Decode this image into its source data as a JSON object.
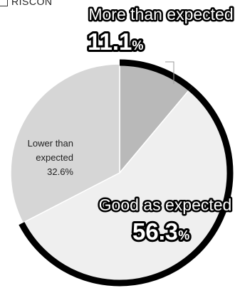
{
  "source_label": "RISCON",
  "chart_data": {
    "type": "pie",
    "slices": [
      {
        "label": "More than expected",
        "value": 11.1,
        "value_text": "11.1",
        "unit": "%",
        "color": "#b9b9b9"
      },
      {
        "label": "Good as expected",
        "value": 56.3,
        "value_text": "56.3",
        "unit": "%",
        "color": "#efefef"
      },
      {
        "label": "Lower than expected",
        "label_lines": [
          "Lower than",
          "expected"
        ],
        "value": 32.6,
        "value_text": "32.6%",
        "color": "#d6d6d6"
      }
    ],
    "highlight_colors": {
      "outline": "#000000",
      "label_fill": "#ffffff"
    },
    "start_angle_deg": 0,
    "direction": "clockwise"
  }
}
